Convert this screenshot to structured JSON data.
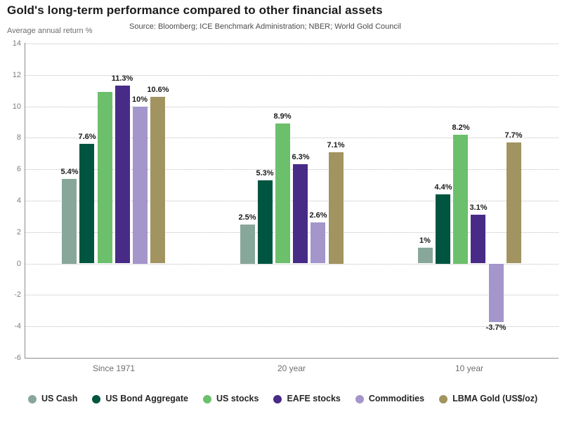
{
  "chart_data": {
    "type": "bar",
    "title": "Gold's long-term performance compared to other financial assets",
    "source": "Source: Bloomberg; ICE Benchmark Administration; NBER; World Gold Council",
    "ylabel": "Average annual return %",
    "xlabel": "",
    "categories": [
      "Since 1971",
      "20 year",
      "10 year"
    ],
    "series": [
      {
        "name": "US Cash",
        "color": "#87A79A",
        "values": [
          5.4,
          2.5,
          1.0
        ],
        "labels": [
          "5.4%",
          "2.5%",
          "1%"
        ]
      },
      {
        "name": "US Bond Aggregate",
        "color": "#005540",
        "values": [
          7.6,
          5.3,
          4.4
        ],
        "labels": [
          "7.6%",
          "5.3%",
          "4.4%"
        ]
      },
      {
        "name": "US stocks",
        "color": "#6CC06C",
        "values": [
          10.9,
          8.9,
          8.2
        ],
        "labels": [
          "",
          "8.9%",
          "8.2%"
        ]
      },
      {
        "name": "EAFE stocks",
        "color": "#472B87",
        "values": [
          11.3,
          6.3,
          3.1
        ],
        "labels": [
          "11.3%",
          "6.3%",
          "3.1%"
        ]
      },
      {
        "name": "Commodities",
        "color": "#A495CB",
        "values": [
          10.0,
          2.6,
          -3.7
        ],
        "labels": [
          "10%",
          "2.6%",
          "-3.7%"
        ]
      },
      {
        "name": "LBMA Gold (US$/oz)",
        "color": "#A29460",
        "values": [
          10.6,
          7.1,
          7.7
        ],
        "labels": [
          "10.6%",
          "7.1%",
          "7.7%"
        ]
      }
    ],
    "ylim": [
      -6,
      14
    ],
    "ytick_step": 2,
    "grid": "horizontal-dotted",
    "legend_position": "bottom"
  }
}
